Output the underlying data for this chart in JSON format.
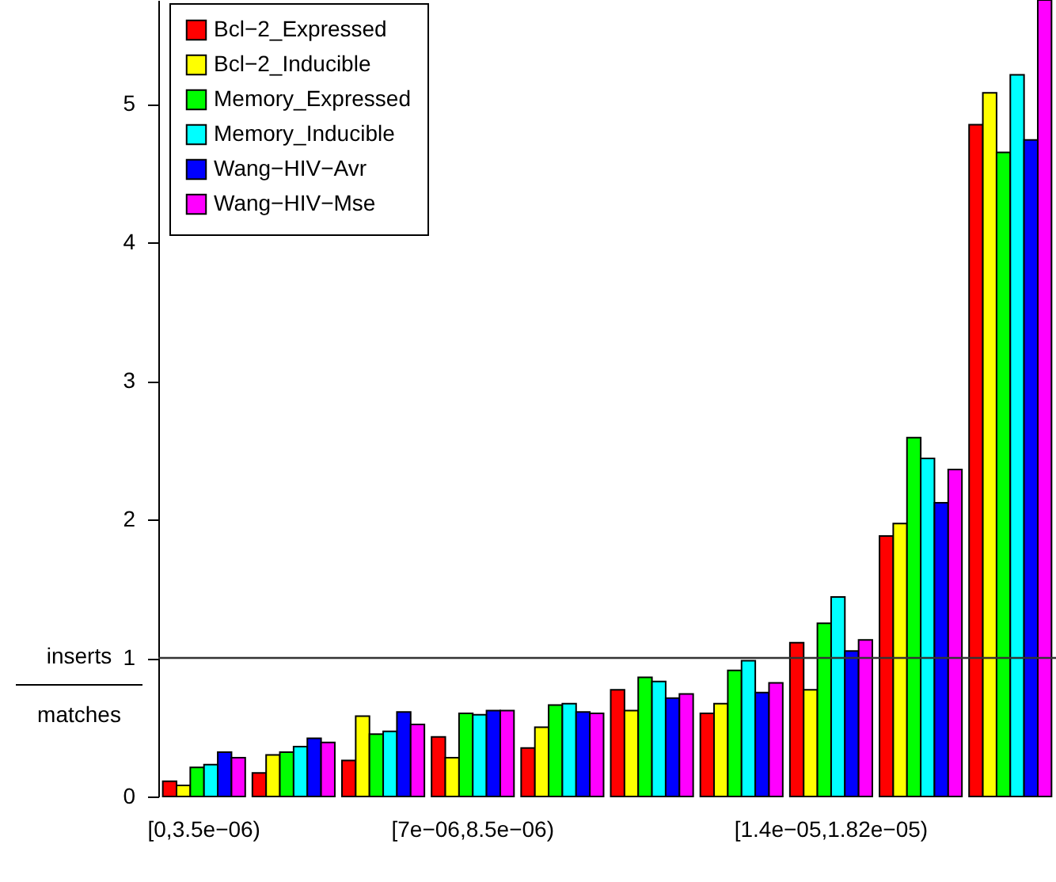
{
  "chart_data": {
    "type": "bar",
    "ylabel": "inserts/matches",
    "categories": [
      "[0,3.5e−06)",
      null,
      null,
      "[7e−06,8.5e−06)",
      null,
      null,
      null,
      "[1.4e−05,1.82e−05)",
      null,
      null
    ],
    "series": [
      {
        "name": "Bcl−2_Expressed",
        "color": "#ff0000",
        "values": [
          0.11,
          0.17,
          0.26,
          0.43,
          0.35,
          0.77,
          0.6,
          1.11,
          1.88,
          4.85
        ]
      },
      {
        "name": "Bcl−2_Inducible",
        "color": "#ffff00",
        "values": [
          0.08,
          0.3,
          0.58,
          0.28,
          0.5,
          0.62,
          0.67,
          0.77,
          1.97,
          5.08
        ]
      },
      {
        "name": "Memory_Expressed",
        "color": "#00ff00",
        "values": [
          0.21,
          0.32,
          0.45,
          0.6,
          0.66,
          0.86,
          0.91,
          1.25,
          2.59,
          4.65
        ]
      },
      {
        "name": "Memory_Inducible",
        "color": "#00ffff",
        "values": [
          0.23,
          0.36,
          0.47,
          0.59,
          0.67,
          0.83,
          0.98,
          1.44,
          2.44,
          5.21
        ]
      },
      {
        "name": "Wang−HIV−Avr",
        "color": "#0000ff",
        "values": [
          0.32,
          0.42,
          0.61,
          0.62,
          0.61,
          0.71,
          0.75,
          1.05,
          2.12,
          4.74
        ]
      },
      {
        "name": "Wang−HIV−Mse",
        "color": "#ff00ff",
        "values": [
          0.28,
          0.39,
          0.52,
          0.62,
          0.6,
          0.74,
          0.82,
          1.13,
          2.36,
          5.75
        ]
      }
    ],
    "ylim": [
      0,
      5.75
    ],
    "yticks": [
      0,
      1,
      2,
      3,
      4,
      5
    ],
    "ref_lines": [
      {
        "axis": "y",
        "value": 1
      }
    ],
    "legend": "top left",
    "grid": false
  }
}
